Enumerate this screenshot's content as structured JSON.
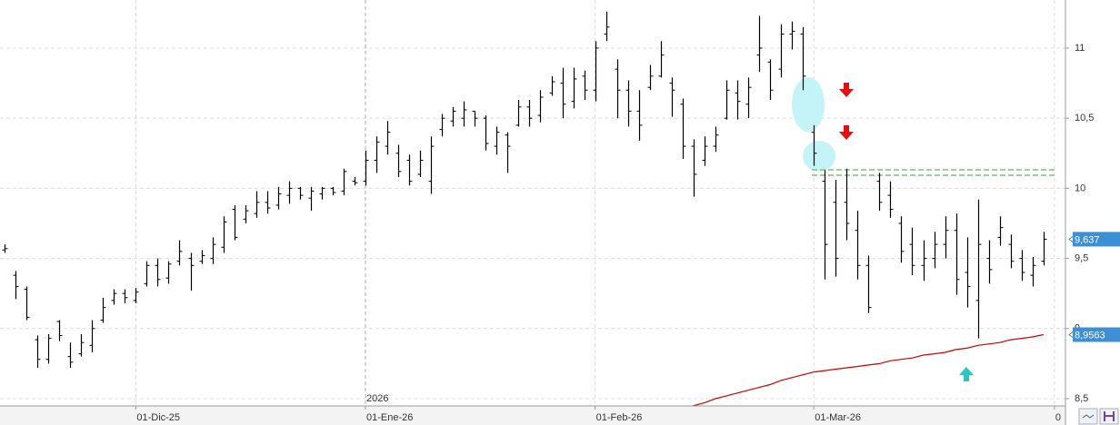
{
  "chart_data": {
    "type": "ohlc",
    "categories": [
      null,
      null,
      null,
      null,
      null,
      null,
      null,
      null,
      null,
      null,
      null,
      null,
      "01-Dic-25",
      null,
      null,
      null,
      null,
      null,
      null,
      null,
      null,
      null,
      null,
      null,
      null,
      null,
      null,
      null,
      null,
      null,
      null,
      null,
      null,
      "01-Ene-26",
      null,
      null,
      null,
      null,
      null,
      null,
      null,
      null,
      null,
      null,
      null,
      null,
      null,
      null,
      null,
      null,
      null,
      null,
      null,
      null,
      "01-Feb-26",
      null,
      null,
      null,
      null,
      null,
      null,
      null,
      null,
      null,
      null,
      null,
      null,
      null,
      null,
      null,
      null,
      null,
      null,
      null,
      "01-Mar-26",
      null,
      null,
      null,
      null,
      null,
      null,
      null,
      null,
      null,
      null,
      null,
      null,
      null,
      null,
      null,
      null,
      null,
      null,
      null,
      null,
      null,
      "0"
    ],
    "year_label": "2026",
    "open": [
      9.56,
      9.38,
      9.28,
      8.92,
      8.78,
      9.05,
      8.8,
      8.82,
      8.88,
      9.06,
      9.2,
      9.25,
      9.2,
      9.32,
      9.45,
      9.36,
      9.48,
      9.5,
      9.48,
      9.5,
      9.58,
      9.85,
      9.78,
      9.82,
      9.9,
      9.88,
      9.95,
      10.0,
      9.93,
      9.96,
      10.0,
      9.98,
      10.05,
      10.05,
      10.2,
      10.3,
      10.25,
      10.2,
      10.1,
      10.05,
      10.42,
      10.48,
      10.5,
      10.55,
      10.5,
      10.3,
      10.38,
      10.45,
      10.58,
      10.52,
      10.68,
      10.75,
      10.62,
      10.8,
      10.7,
      11.1,
      10.85,
      10.7,
      10.55,
      10.72,
      10.8,
      10.75,
      10.6,
      10.3,
      10.2,
      10.3,
      10.5,
      10.68,
      10.6,
      10.95,
      10.9,
      10.85,
      11.1,
      11.1,
      10.4,
      10.05,
      9.9,
      9.9,
      9.7,
      9.45,
      10.05,
      9.95,
      9.75,
      9.6,
      9.45,
      9.5,
      9.6,
      9.7,
      9.4,
      9.2,
      9.5,
      9.65,
      9.6,
      9.5,
      9.38,
      9.48,
      null
    ],
    "high": [
      9.6,
      9.41,
      9.3,
      8.95,
      8.96,
      9.06,
      8.9,
      8.96,
      9.06,
      9.22,
      9.28,
      9.28,
      9.29,
      9.48,
      9.5,
      9.48,
      9.63,
      9.54,
      9.56,
      9.65,
      9.8,
      9.88,
      9.88,
      9.98,
      9.98,
      10.01,
      10.05,
      10.01,
      10.01,
      10.01,
      10.01,
      10.14,
      10.08,
      10.27,
      10.37,
      10.48,
      10.31,
      10.24,
      10.27,
      10.37,
      10.53,
      10.58,
      10.62,
      10.55,
      10.52,
      10.44,
      10.4,
      10.63,
      10.63,
      10.7,
      10.8,
      10.86,
      10.86,
      10.84,
      11.05,
      11.26,
      10.92,
      10.77,
      10.7,
      10.88,
      11.05,
      10.79,
      10.64,
      10.35,
      10.37,
      10.44,
      10.77,
      10.77,
      10.79,
      11.23,
      10.92,
      11.17,
      11.19,
      11.15,
      10.45,
      10.13,
      10.06,
      10.14,
      9.84,
      9.52,
      10.11,
      10.05,
      9.8,
      9.72,
      9.63,
      9.69,
      9.8,
      9.82,
      9.65,
      9.92,
      9.63,
      9.8,
      9.67,
      9.56,
      9.51,
      9.69,
      null
    ],
    "low": [
      9.54,
      9.21,
      9.06,
      8.72,
      8.75,
      8.91,
      8.72,
      8.8,
      8.83,
      9.04,
      9.17,
      9.18,
      9.18,
      9.3,
      9.3,
      9.32,
      9.45,
      9.27,
      9.46,
      9.46,
      9.54,
      9.63,
      9.75,
      9.79,
      9.82,
      9.85,
      9.89,
      9.92,
      9.84,
      9.92,
      9.95,
      9.95,
      10.02,
      10.02,
      10.11,
      10.24,
      10.08,
      10.02,
      10.08,
      9.96,
      10.37,
      10.44,
      10.44,
      10.44,
      10.27,
      10.24,
      10.11,
      10.44,
      10.44,
      10.47,
      10.66,
      10.5,
      10.57,
      10.63,
      10.62,
      11.05,
      10.5,
      10.44,
      10.34,
      10.7,
      10.79,
      10.51,
      10.21,
      9.94,
      10.16,
      10.26,
      10.49,
      10.49,
      10.5,
      10.83,
      10.63,
      10.79,
      10.99,
      10.7,
      10.16,
      9.35,
      9.37,
      9.63,
      9.35,
      9.11,
      9.84,
      9.79,
      9.47,
      9.38,
      9.34,
      9.43,
      9.5,
      9.24,
      9.15,
      8.93,
      9.32,
      9.59,
      9.43,
      9.34,
      9.3,
      9.45,
      null
    ],
    "close": [
      9.57,
      9.3,
      9.08,
      8.78,
      8.93,
      8.95,
      8.76,
      8.9,
      9.0,
      9.15,
      9.25,
      9.22,
      9.26,
      9.45,
      9.35,
      9.46,
      9.55,
      9.45,
      9.52,
      9.6,
      9.76,
      9.65,
      9.84,
      9.9,
      9.86,
      9.96,
      10.0,
      9.95,
      9.98,
      10.0,
      9.97,
      10.12,
      10.04,
      10.2,
      10.33,
      10.4,
      10.12,
      10.05,
      10.2,
      10.3,
      10.5,
      10.55,
      10.56,
      10.5,
      10.32,
      10.4,
      10.3,
      10.58,
      10.5,
      10.65,
      10.76,
      10.6,
      10.78,
      10.7,
      11.0,
      11.15,
      10.7,
      10.55,
      10.45,
      10.8,
      10.95,
      10.7,
      10.3,
      10.1,
      10.3,
      10.38,
      10.7,
      10.62,
      10.72,
      11.0,
      10.7,
      11.1,
      11.12,
      10.8,
      10.25,
      9.6,
      9.5,
      9.75,
      9.45,
      9.15,
      9.9,
      9.85,
      9.55,
      9.45,
      9.5,
      9.6,
      9.7,
      9.35,
      9.3,
      9.6,
      9.42,
      9.72,
      9.48,
      9.4,
      9.45,
      9.637,
      null
    ],
    "bar_color": "#000000",
    "ma": {
      "color": "#cc0000",
      "values": [
        null,
        null,
        null,
        null,
        null,
        null,
        null,
        null,
        null,
        null,
        null,
        null,
        null,
        null,
        null,
        null,
        null,
        null,
        null,
        null,
        null,
        null,
        null,
        null,
        null,
        null,
        null,
        null,
        null,
        null,
        null,
        null,
        null,
        null,
        null,
        null,
        null,
        null,
        null,
        null,
        null,
        null,
        null,
        null,
        null,
        null,
        null,
        null,
        null,
        null,
        null,
        null,
        null,
        null,
        null,
        null,
        null,
        null,
        null,
        null,
        null,
        null,
        8.43,
        8.45,
        8.47,
        8.5,
        8.52,
        8.54,
        8.56,
        8.58,
        8.6,
        8.63,
        8.65,
        8.67,
        8.69,
        8.7,
        8.71,
        8.72,
        8.73,
        8.74,
        8.75,
        8.77,
        8.78,
        8.79,
        8.81,
        8.82,
        8.83,
        8.85,
        8.86,
        8.88,
        8.89,
        8.9,
        8.92,
        8.93,
        8.94,
        8.9563,
        null
      ]
    },
    "last_price": {
      "value": 9.637,
      "label": "9,637"
    },
    "ma_last": {
      "value": 8.9563,
      "label": "8,9563"
    },
    "price_label_color": "#3d8fd6",
    "ylim": [
      8.448,
      11.343
    ],
    "yticks": [
      {
        "value": 8.5,
        "label": "8,5"
      },
      9,
      {
        "value": 9.5,
        "label": "9,5"
      },
      10,
      {
        "value": 10.5,
        "label": "10,5"
      },
      11
    ],
    "grid": true
  }
}
